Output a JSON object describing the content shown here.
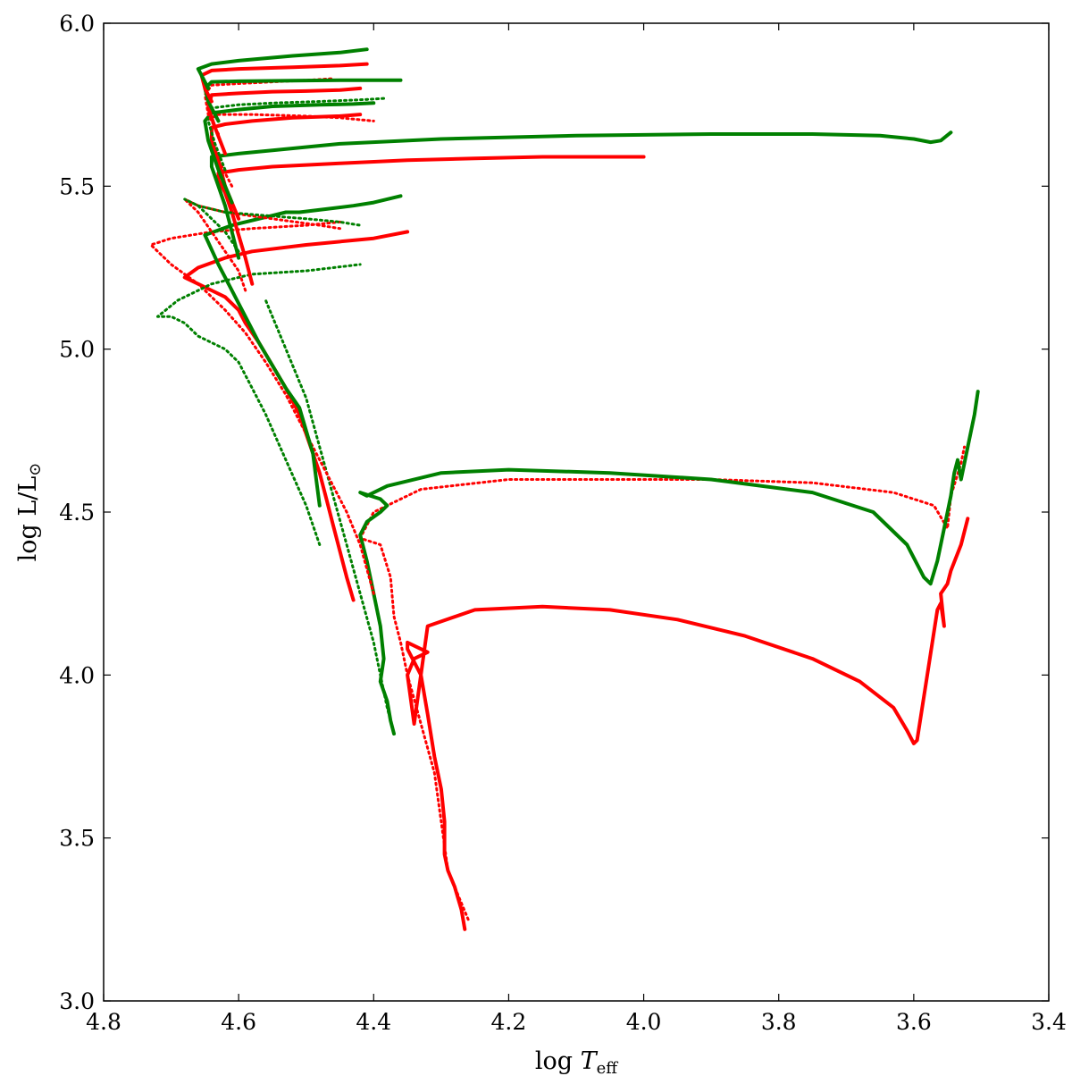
{
  "chart_data": {
    "type": "line",
    "title": "",
    "xlabel": {
      "main": "log ",
      "italic": "T",
      "sub": "eff"
    },
    "ylabel": {
      "main": "log L/L",
      "sub": "⊙"
    },
    "xlim": [
      4.8,
      3.4
    ],
    "ylim": [
      3.0,
      6.0
    ],
    "x_ticks": [
      "4.8",
      "4.6",
      "4.4",
      "4.2",
      "4.0",
      "3.8",
      "3.6",
      "3.4"
    ],
    "y_ticks": [
      "3.0",
      "3.5",
      "4.0",
      "4.5",
      "5.0",
      "5.5",
      "6.0"
    ],
    "grid": false,
    "legend": "none",
    "colors": {
      "red": "#ff0000",
      "green": "#008000"
    },
    "series": [
      {
        "color": "red",
        "style": "solid",
        "x": [
          4.265,
          4.27,
          4.28,
          4.29,
          4.295,
          4.295,
          4.3,
          4.31,
          4.32,
          4.33,
          4.35,
          4.35,
          4.32,
          4.34,
          4.35,
          4.34,
          4.32,
          4.25,
          4.15,
          4.05,
          3.95,
          3.85,
          3.75,
          3.68,
          3.63,
          3.61,
          3.6,
          3.595,
          3.58,
          3.565,
          3.56,
          3.555,
          3.56,
          3.55,
          3.545,
          3.53,
          3.52
        ],
        "y": [
          3.22,
          3.28,
          3.35,
          3.4,
          3.45,
          3.55,
          3.65,
          3.75,
          3.88,
          4.0,
          4.08,
          4.1,
          4.07,
          4.05,
          4.0,
          3.85,
          4.15,
          4.2,
          4.21,
          4.2,
          4.17,
          4.12,
          4.05,
          3.98,
          3.9,
          3.83,
          3.79,
          3.8,
          4.0,
          4.2,
          4.22,
          4.15,
          4.25,
          4.28,
          4.32,
          4.4,
          4.48
        ]
      },
      {
        "color": "red",
        "style": "dotted",
        "x": [
          4.26,
          4.27,
          4.29,
          4.3,
          4.31,
          4.33,
          4.35,
          4.36,
          4.37,
          4.375,
          4.39,
          4.42,
          4.4,
          4.33,
          4.2,
          4.05,
          3.9,
          3.75,
          3.63,
          3.57,
          3.55,
          3.545,
          3.53,
          3.525
        ],
        "y": [
          3.25,
          3.3,
          3.4,
          3.55,
          3.7,
          3.85,
          4.0,
          4.1,
          4.18,
          4.3,
          4.4,
          4.42,
          4.5,
          4.57,
          4.6,
          4.6,
          4.6,
          4.59,
          4.56,
          4.52,
          4.45,
          4.55,
          4.65,
          4.7
        ]
      },
      {
        "color": "green",
        "style": "solid",
        "x": [
          4.37,
          4.375,
          4.38,
          4.39,
          4.385,
          4.39,
          4.4,
          4.41,
          4.42,
          4.41,
          4.39,
          4.38,
          4.39,
          4.42,
          4.41,
          4.38,
          4.3,
          4.2,
          4.05,
          3.9,
          3.75,
          3.66,
          3.61,
          3.585,
          3.575,
          3.565,
          3.555,
          3.545,
          3.54,
          3.535,
          3.53,
          3.52,
          3.51,
          3.505
        ],
        "y": [
          3.82,
          3.86,
          3.92,
          3.98,
          4.05,
          4.15,
          4.25,
          4.35,
          4.43,
          4.47,
          4.5,
          4.52,
          4.54,
          4.56,
          4.55,
          4.58,
          4.62,
          4.63,
          4.62,
          4.6,
          4.56,
          4.5,
          4.4,
          4.3,
          4.28,
          4.35,
          4.45,
          4.55,
          4.62,
          4.66,
          4.6,
          4.7,
          4.8,
          4.87
        ]
      },
      {
        "color": "green",
        "style": "dotted",
        "x": [
          4.37,
          4.38,
          4.39,
          4.4,
          4.42,
          4.44,
          4.46,
          4.48,
          4.5,
          4.52,
          4.54,
          4.56
        ],
        "y": [
          3.82,
          3.9,
          4.0,
          4.1,
          4.25,
          4.4,
          4.55,
          4.7,
          4.85,
          4.95,
          5.05,
          5.15
        ]
      },
      {
        "color": "red",
        "style": "solid",
        "x": [
          4.43,
          4.44,
          4.45,
          4.46,
          4.47,
          4.48,
          4.49,
          4.5,
          4.51,
          4.53,
          4.55,
          4.57,
          4.59,
          4.6,
          4.62,
          4.64,
          4.66,
          4.68,
          4.66,
          4.62,
          4.58,
          4.5,
          4.4,
          4.35
        ],
        "y": [
          4.23,
          4.3,
          4.38,
          4.46,
          4.54,
          4.62,
          4.68,
          4.74,
          4.8,
          4.88,
          4.95,
          5.02,
          5.08,
          5.12,
          5.16,
          5.18,
          5.2,
          5.22,
          5.25,
          5.28,
          5.3,
          5.32,
          5.34,
          5.36
        ]
      },
      {
        "color": "red",
        "style": "dotted",
        "x": [
          4.4,
          4.42,
          4.44,
          4.47,
          4.5,
          4.53,
          4.56,
          4.59,
          4.62,
          4.66,
          4.7,
          4.73,
          4.7,
          4.64,
          4.58,
          4.5,
          4.45
        ],
        "y": [
          4.25,
          4.4,
          4.5,
          4.62,
          4.74,
          4.86,
          4.96,
          5.05,
          5.12,
          5.2,
          5.26,
          5.32,
          5.34,
          5.36,
          5.37,
          5.38,
          5.39
        ]
      },
      {
        "color": "green",
        "style": "solid",
        "x": [
          4.48,
          4.485,
          4.49,
          4.5,
          4.51,
          4.53,
          4.55,
          4.57,
          4.59,
          4.61,
          4.63,
          4.65,
          4.61,
          4.57,
          4.55,
          4.53,
          4.51,
          4.47,
          4.43,
          4.4,
          4.38,
          4.36
        ],
        "y": [
          4.52,
          4.6,
          4.68,
          4.75,
          4.82,
          4.88,
          4.95,
          5.02,
          5.1,
          5.18,
          5.26,
          5.35,
          5.38,
          5.4,
          5.41,
          5.42,
          5.42,
          5.43,
          5.44,
          5.45,
          5.46,
          5.47
        ]
      },
      {
        "color": "green",
        "style": "dotted",
        "x": [
          4.48,
          4.5,
          4.53,
          4.56,
          4.58,
          4.6,
          4.62,
          4.64,
          4.66,
          4.68,
          4.7,
          4.72,
          4.69,
          4.64,
          4.58,
          4.5,
          4.42
        ],
        "y": [
          4.4,
          4.52,
          4.66,
          4.8,
          4.88,
          4.96,
          5.0,
          5.02,
          5.04,
          5.08,
          5.1,
          5.1,
          5.15,
          5.2,
          5.23,
          5.24,
          5.26
        ]
      },
      {
        "color": "red",
        "style": "solid",
        "x": [
          4.58,
          4.59,
          4.6,
          4.61,
          4.62,
          4.63,
          4.63,
          4.6,
          4.55,
          4.45,
          4.35,
          4.25,
          4.15,
          4.05,
          4.0
        ],
        "y": [
          5.2,
          5.28,
          5.35,
          5.42,
          5.48,
          5.52,
          5.54,
          5.55,
          5.56,
          5.57,
          5.58,
          5.585,
          5.59,
          5.59,
          5.59
        ]
      },
      {
        "color": "red",
        "style": "dotted",
        "x": [
          4.59,
          4.6,
          4.62,
          4.64,
          4.66,
          4.68,
          4.66,
          4.62,
          4.55,
          4.48,
          4.45
        ],
        "y": [
          5.18,
          5.24,
          5.3,
          5.36,
          5.42,
          5.46,
          5.44,
          5.42,
          5.4,
          5.38,
          5.37
        ]
      },
      {
        "color": "green",
        "style": "solid",
        "x": [
          4.6,
          4.61,
          4.62,
          4.63,
          4.64,
          4.64,
          4.6,
          4.55,
          4.45,
          4.3,
          4.1,
          3.9,
          3.75,
          3.65,
          3.6,
          3.575,
          3.56,
          3.545
        ],
        "y": [
          5.28,
          5.36,
          5.44,
          5.5,
          5.56,
          5.59,
          5.6,
          5.61,
          5.63,
          5.645,
          5.655,
          5.66,
          5.66,
          5.655,
          5.645,
          5.635,
          5.64,
          5.665
        ]
      },
      {
        "color": "green",
        "style": "dotted",
        "x": [
          4.6,
          4.62,
          4.64,
          4.66,
          4.68,
          4.66,
          4.62,
          4.56,
          4.5,
          4.45,
          4.42
        ],
        "y": [
          5.3,
          5.36,
          5.4,
          5.44,
          5.46,
          5.44,
          5.42,
          5.41,
          5.4,
          5.39,
          5.38
        ]
      },
      {
        "color": "red",
        "style": "solid",
        "x": [
          4.6,
          4.62,
          4.63,
          4.64,
          4.64,
          4.62,
          4.58,
          4.52,
          4.45,
          4.42
        ],
        "y": [
          5.4,
          5.5,
          5.58,
          5.64,
          5.68,
          5.69,
          5.7,
          5.71,
          5.715,
          5.72
        ]
      },
      {
        "color": "red",
        "style": "dotted",
        "x": [
          4.61,
          4.63,
          4.645,
          4.65,
          4.63,
          4.58,
          4.5,
          4.45,
          4.4
        ],
        "y": [
          5.5,
          5.58,
          5.64,
          5.7,
          5.72,
          5.72,
          5.715,
          5.71,
          5.7
        ]
      },
      {
        "color": "green",
        "style": "solid",
        "x": [
          4.61,
          4.63,
          4.645,
          4.65,
          4.64,
          4.6,
          4.55,
          4.48,
          4.43,
          4.4
        ],
        "y": [
          5.45,
          5.55,
          5.64,
          5.7,
          5.725,
          5.735,
          5.745,
          5.75,
          5.752,
          5.755
        ]
      },
      {
        "color": "green",
        "style": "dotted",
        "x": [
          4.62,
          4.635,
          4.645,
          4.64,
          4.6,
          4.55,
          4.48,
          4.42,
          4.38
        ],
        "y": [
          5.55,
          5.63,
          5.7,
          5.74,
          5.75,
          5.755,
          5.76,
          5.765,
          5.77
        ]
      },
      {
        "color": "red",
        "style": "solid",
        "x": [
          4.62,
          4.635,
          4.645,
          4.64,
          4.6,
          4.55,
          4.5,
          4.45,
          4.42
        ],
        "y": [
          5.6,
          5.68,
          5.74,
          5.78,
          5.785,
          5.79,
          5.792,
          5.795,
          5.8
        ]
      },
      {
        "color": "red",
        "style": "dotted",
        "x": [
          4.63,
          4.645,
          4.65,
          4.64,
          4.6,
          4.55,
          4.5,
          4.46
        ],
        "y": [
          5.66,
          5.72,
          5.78,
          5.81,
          5.815,
          5.82,
          5.825,
          5.83
        ]
      },
      {
        "color": "green",
        "style": "solid",
        "x": [
          4.63,
          4.645,
          4.65,
          4.64,
          4.6,
          4.52,
          4.45,
          4.4,
          4.36
        ],
        "y": [
          5.7,
          5.76,
          5.8,
          5.82,
          5.822,
          5.824,
          5.825,
          5.825,
          5.825
        ]
      },
      {
        "color": "red",
        "style": "solid",
        "x": [
          4.64,
          4.65,
          4.655,
          4.64,
          4.6,
          4.52,
          4.45,
          4.41
        ],
        "y": [
          5.76,
          5.8,
          5.84,
          5.855,
          5.86,
          5.865,
          5.87,
          5.875
        ]
      },
      {
        "color": "green",
        "style": "solid",
        "x": [
          4.645,
          4.655,
          4.66,
          4.64,
          4.6,
          4.52,
          4.45,
          4.41
        ],
        "y": [
          5.8,
          5.84,
          5.86,
          5.875,
          5.885,
          5.9,
          5.91,
          5.92
        ]
      }
    ]
  }
}
